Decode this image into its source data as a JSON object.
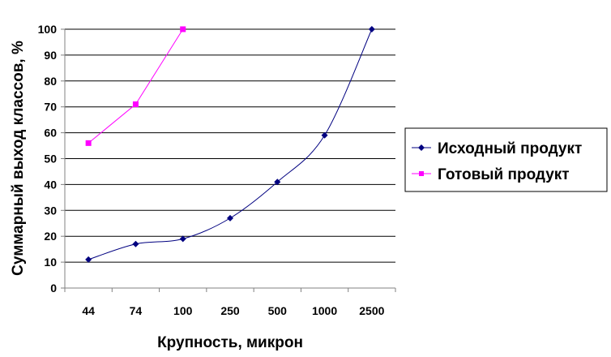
{
  "chart_data": {
    "type": "line",
    "categories": [
      "44",
      "74",
      "100",
      "250",
      "500",
      "1000",
      "2500"
    ],
    "ylim": [
      0,
      100
    ],
    "yticks": [
      0,
      10,
      20,
      30,
      40,
      50,
      60,
      70,
      80,
      90,
      100
    ],
    "xlabel": "Крупность, микрон",
    "ylabel": "Суммарный выход классов, %",
    "grid": "horizontal",
    "legend": "right",
    "series": [
      {
        "name": "Исходный продукт",
        "color": "#000080",
        "marker": "diamond",
        "values": [
          11,
          17,
          19,
          27,
          41,
          59,
          100
        ]
      },
      {
        "name": "Готовый продукт",
        "color": "#ff00ff",
        "marker": "square",
        "values": [
          56,
          71,
          100,
          null,
          null,
          null,
          null
        ]
      }
    ]
  }
}
